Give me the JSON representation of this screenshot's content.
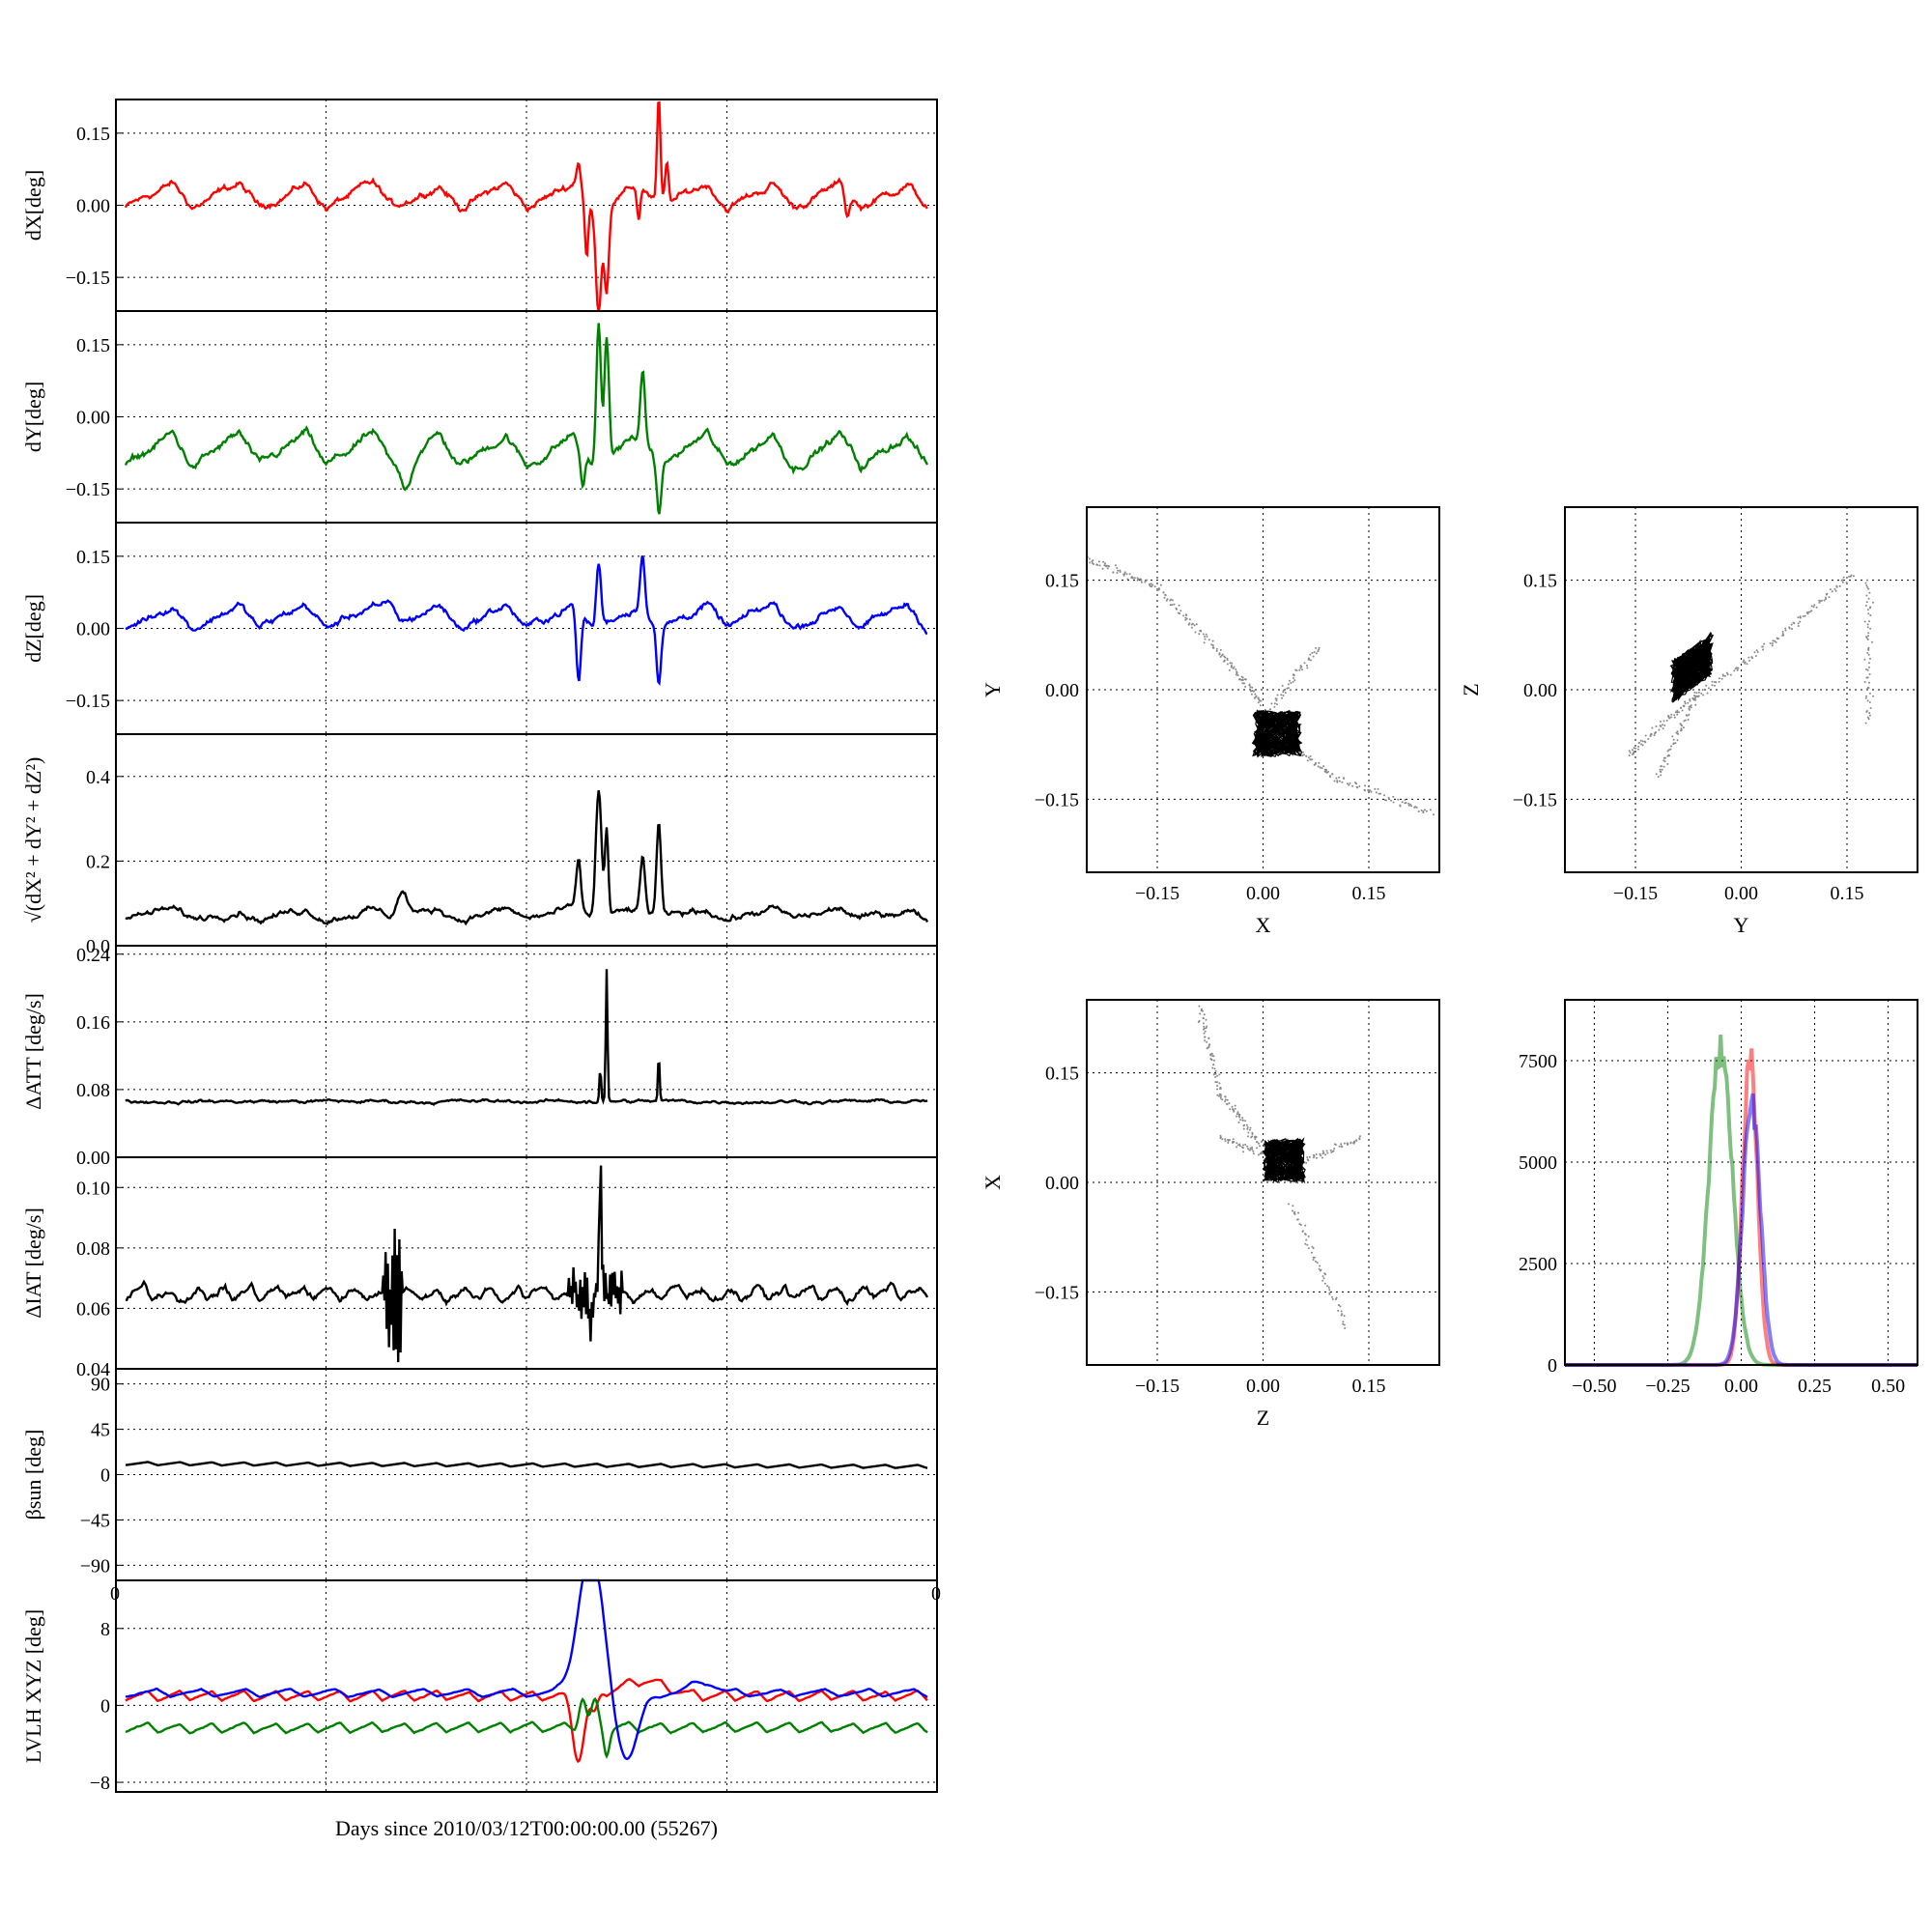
{
  "figure": {
    "xlabel": "Days since 2010/03/12T00:00:00.00 (55267)"
  },
  "chart_data": [
    {
      "id": "dX",
      "type": "line",
      "ylabel": "dX[deg]",
      "color": "#ff0000",
      "ylim": [
        -0.22,
        0.22
      ],
      "yticks": [
        -0.15,
        0.0,
        0.15
      ],
      "ytick_labels": [
        "−0.15",
        "0.00",
        "0.15"
      ],
      "baseline": 0.02,
      "amplitude": 0.025,
      "cycles": 12,
      "noise": 0.006,
      "features": [
        [
          0.565,
          0.004,
          0.06
        ],
        [
          0.575,
          0.003,
          -0.12
        ],
        [
          0.59,
          0.005,
          -0.22
        ],
        [
          0.6,
          0.004,
          -0.18
        ],
        [
          0.64,
          0.003,
          -0.07
        ],
        [
          0.665,
          0.003,
          0.22
        ],
        [
          0.675,
          0.003,
          0.08
        ],
        [
          0.9,
          0.004,
          -0.05
        ]
      ]
    },
    {
      "id": "dY",
      "type": "line",
      "ylabel": "dY[deg]",
      "color": "#008000",
      "ylim": [
        -0.22,
        0.22
      ],
      "yticks": [
        -0.15,
        0.0,
        0.15
      ],
      "ytick_labels": [
        "−0.15",
        "0.00",
        "0.15"
      ],
      "baseline": -0.07,
      "amplitude": 0.035,
      "cycles": 12,
      "noise": 0.007,
      "features": [
        [
          0.57,
          0.004,
          -0.08
        ],
        [
          0.59,
          0.004,
          0.29
        ],
        [
          0.6,
          0.004,
          0.25
        ],
        [
          0.645,
          0.004,
          0.13
        ],
        [
          0.665,
          0.004,
          -0.1
        ],
        [
          0.35,
          0.01,
          -0.06
        ]
      ]
    },
    {
      "id": "dZ",
      "type": "line",
      "ylabel": "dZ[deg]",
      "color": "#0000ff",
      "ylim": [
        -0.22,
        0.22
      ],
      "yticks": [
        -0.15,
        0.0,
        0.15
      ],
      "ytick_labels": [
        "−0.15",
        "0.00",
        "0.15"
      ],
      "baseline": 0.025,
      "amplitude": 0.025,
      "cycles": 12,
      "noise": 0.006,
      "features": [
        [
          0.565,
          0.004,
          -0.15
        ],
        [
          0.59,
          0.004,
          0.13
        ],
        [
          0.645,
          0.004,
          0.12
        ],
        [
          0.665,
          0.004,
          -0.12
        ],
        [
          0.33,
          0.01,
          0.04
        ]
      ]
    },
    {
      "id": "dR",
      "type": "line",
      "ylabel": "√(dX² + dY² + dZ²)",
      "color": "#000000",
      "ylim": [
        0.0,
        0.5
      ],
      "yticks": [
        0.0,
        0.2,
        0.4
      ],
      "ytick_labels": [
        "0.0",
        "0.2",
        "0.4"
      ],
      "baseline": 0.075,
      "amplitude": 0.012,
      "cycles": 12,
      "noise": 0.006,
      "features": [
        [
          0.565,
          0.004,
          0.12
        ],
        [
          0.59,
          0.005,
          0.3
        ],
        [
          0.6,
          0.003,
          0.2
        ],
        [
          0.645,
          0.004,
          0.12
        ],
        [
          0.665,
          0.004,
          0.22
        ],
        [
          0.345,
          0.01,
          0.06
        ]
      ]
    },
    {
      "id": "dATT",
      "type": "line",
      "ylabel": "ΔATT [deg/s]",
      "color": "#000000",
      "ylim": [
        0.0,
        0.25
      ],
      "yticks": [
        0.0,
        0.08,
        0.16,
        0.24
      ],
      "ytick_labels": [
        "0.00",
        "0.08",
        "0.16",
        "0.24"
      ],
      "baseline": 0.066,
      "amplitude": 0.0,
      "cycles": 12,
      "noise": 0.0015,
      "features": [
        [
          0.6,
          0.0015,
          0.155
        ],
        [
          0.592,
          0.0015,
          0.04
        ],
        [
          0.665,
          0.0015,
          0.055
        ],
        [
          0.575,
          0.004,
          0.01
        ],
        [
          0.575,
          0.003,
          -0.01
        ]
      ]
    },
    {
      "id": "dIAT",
      "type": "line",
      "ylabel": "ΔIAT [deg/s]",
      "color": "#000000",
      "ylim": [
        0.04,
        0.11
      ],
      "yticks": [
        0.04,
        0.06,
        0.08,
        0.1
      ],
      "ytick_labels": [
        "0.04",
        "0.06",
        "0.08",
        "0.10"
      ],
      "baseline": 0.065,
      "amplitude": 0.002,
      "cycles": 30,
      "noise": 0.001,
      "bursts": [
        [
          0.32,
          0.345,
          0.025
        ],
        [
          0.55,
          0.62,
          0.008
        ]
      ],
      "features": [
        [
          0.592,
          0.002,
          0.04
        ],
        [
          0.58,
          0.003,
          -0.012
        ]
      ]
    },
    {
      "id": "beta_sun",
      "type": "line",
      "ylabel": "βsun [deg]",
      "color": "#000000",
      "ylim": [
        -105,
        105
      ],
      "yticks": [
        -90,
        -45,
        0,
        45,
        90
      ],
      "ytick_labels": [
        "−90",
        "−45",
        "0",
        "45",
        "90"
      ],
      "baseline": 11,
      "amplitude": 1.6,
      "cycles": 25,
      "noise": 0,
      "trend": -3,
      "features": []
    },
    {
      "id": "LVLH",
      "type": "line",
      "ylabel": "LVLH XYZ [deg]",
      "ylim": [
        -9,
        13
      ],
      "yticks": [
        -8,
        0,
        8
      ],
      "ytick_labels": [
        "−8",
        "0",
        "8"
      ],
      "edge_tick_labels": [
        "0",
        "0"
      ],
      "series": [
        {
          "color": "#ff0000",
          "baseline": 1.0,
          "amplitude": 0.5,
          "cycles": 25,
          "features": [
            [
              0.565,
              0.01,
              -6.5
            ],
            [
              0.585,
              0.006,
              -2
            ],
            [
              0.645,
              0.04,
              1.6
            ]
          ]
        },
        {
          "color": "#008000",
          "baseline": -2.3,
          "amplitude": 0.5,
          "cycles": 25,
          "features": [
            [
              0.57,
              0.006,
              3.0
            ],
            [
              0.585,
              0.006,
              2.5
            ],
            [
              0.6,
              0.005,
              -2.5
            ]
          ]
        },
        {
          "color": "#0000ff",
          "baseline": 1.3,
          "amplitude": 0.4,
          "cycles": 18,
          "features": [
            [
              0.58,
              0.022,
              14.5
            ],
            [
              0.625,
              0.02,
              -7
            ],
            [
              0.72,
              0.02,
              1.3
            ]
          ]
        }
      ]
    },
    {
      "id": "scatter_XY",
      "type": "scatter",
      "xlabel": "X",
      "ylabel": "Y",
      "xlim": [
        -0.25,
        0.25
      ],
      "ylim": [
        -0.25,
        0.25
      ],
      "ticks": [
        -0.15,
        0.0,
        0.15
      ],
      "tick_labels": [
        "−0.15",
        "0.00",
        "0.15"
      ],
      "core": {
        "center": [
          0.02,
          -0.06
        ],
        "spread": [
          0.035,
          0.032
        ]
      },
      "trails": [
        [
          [
            -0.25,
            0.18
          ],
          [
            -0.15,
            0.14
          ],
          [
            -0.06,
            0.05
          ],
          [
            0.0,
            -0.02
          ]
        ],
        [
          [
            0.02,
            -0.06
          ],
          [
            0.1,
            -0.12
          ],
          [
            0.24,
            -0.17
          ]
        ],
        [
          [
            0.0,
            -0.04
          ],
          [
            0.08,
            0.06
          ]
        ]
      ]
    },
    {
      "id": "scatter_YZ",
      "type": "scatter",
      "xlabel": "Y",
      "ylabel": "Z",
      "xlim": [
        -0.25,
        0.25
      ],
      "ylim": [
        -0.25,
        0.25
      ],
      "ticks": [
        -0.15,
        0.0,
        0.15
      ],
      "tick_labels": [
        "−0.15",
        "0.00",
        "0.15"
      ],
      "core": {
        "center": [
          -0.07,
          0.03
        ],
        "spread": [
          0.03,
          0.03
        ],
        "tilt": 0.7
      },
      "trails": [
        [
          [
            -0.16,
            -0.09
          ],
          [
            -0.08,
            -0.02
          ],
          [
            0.05,
            0.07
          ],
          [
            0.16,
            0.16
          ]
        ],
        [
          [
            -0.12,
            -0.12
          ],
          [
            -0.06,
            0.0
          ]
        ],
        [
          [
            0.18,
            0.15
          ],
          [
            0.18,
            -0.05
          ]
        ]
      ]
    },
    {
      "id": "scatter_ZX",
      "type": "scatter",
      "xlabel": "Z",
      "ylabel": "X",
      "xlim": [
        -0.25,
        0.25
      ],
      "ylim": [
        -0.25,
        0.25
      ],
      "ticks": [
        -0.15,
        0.0,
        0.15
      ],
      "tick_labels": [
        "−0.15",
        "0.00",
        "0.15"
      ],
      "core": {
        "center": [
          0.03,
          0.03
        ],
        "spread": [
          0.03,
          0.03
        ]
      },
      "trails": [
        [
          [
            -0.09,
            0.24
          ],
          [
            -0.06,
            0.12
          ],
          [
            0.0,
            0.05
          ]
        ],
        [
          [
            0.04,
            -0.03
          ],
          [
            0.12,
            -0.2
          ]
        ],
        [
          [
            -0.06,
            0.06
          ],
          [
            0.03,
            0.03
          ]
        ],
        [
          [
            0.14,
            0.06
          ],
          [
            0.03,
            0.02
          ]
        ]
      ]
    },
    {
      "id": "histogram",
      "type": "line",
      "xlim": [
        -0.6,
        0.6
      ],
      "ylim": [
        0,
        9000
      ],
      "xticks": [
        -0.5,
        -0.25,
        0.0,
        0.25,
        0.5
      ],
      "xtick_labels": [
        "−0.50",
        "−0.25",
        "0.00",
        "0.25",
        "0.50"
      ],
      "yticks": [
        0,
        2500,
        5000,
        7500
      ],
      "ytick_labels": [
        "0",
        "2500",
        "5000",
        "7500"
      ],
      "series": [
        {
          "color": "#008000",
          "center": -0.07,
          "width": 0.04,
          "peak": 8200
        },
        {
          "color": "#ff0000",
          "center": 0.03,
          "width": 0.025,
          "peak": 8050
        },
        {
          "color": "#0000ff",
          "center": 0.035,
          "width": 0.03,
          "peak": 6800
        }
      ]
    }
  ]
}
